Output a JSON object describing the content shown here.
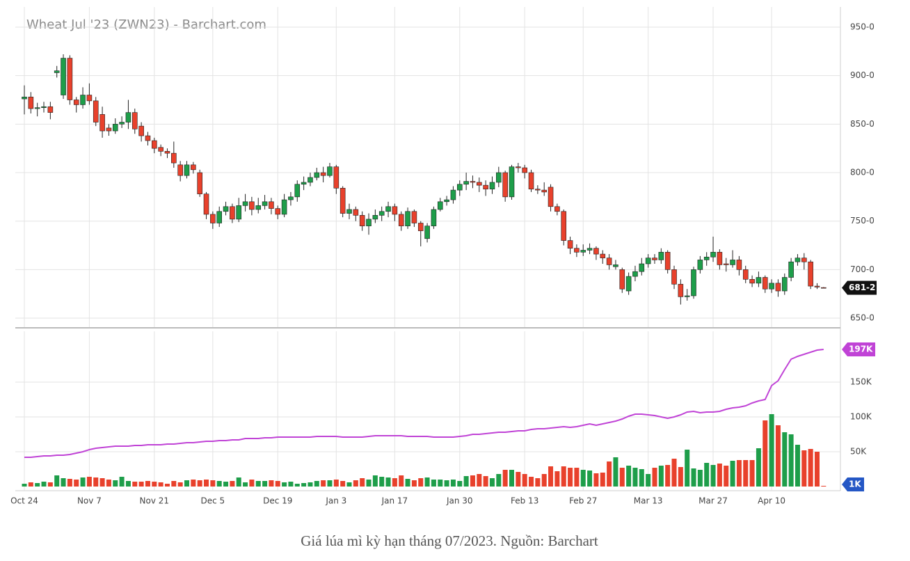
{
  "chart_data": {
    "type": "candlestick",
    "title": "Wheat Jul '23 (ZWN23) - Barchart.com",
    "caption": "Giá lúa mì kỳ hạn tháng 07/2023. Nguồn: Barchart",
    "categories": [
      "Oct 24",
      null,
      null,
      null,
      null,
      null,
      null,
      null,
      null,
      null,
      "Nov 7",
      null,
      null,
      null,
      null,
      null,
      null,
      null,
      null,
      null,
      "Nov 21",
      null,
      null,
      null,
      null,
      null,
      null,
      null,
      null,
      "Dec 5",
      null,
      null,
      null,
      null,
      null,
      null,
      null,
      null,
      null,
      "Dec 19",
      null,
      null,
      null,
      null,
      null,
      null,
      null,
      null,
      "Jan 3",
      null,
      null,
      null,
      null,
      null,
      null,
      null,
      null,
      "Jan 17",
      null,
      null,
      null,
      null,
      null,
      null,
      null,
      null,
      null,
      "Jan 30",
      null,
      null,
      null,
      null,
      null,
      null,
      null,
      null,
      null,
      "Feb 13",
      null,
      null,
      null,
      null,
      null,
      null,
      null,
      null,
      "Feb 27",
      null,
      null,
      null,
      null,
      null,
      null,
      null,
      null,
      null,
      "Mar 13",
      null,
      null,
      null,
      null,
      null,
      null,
      null,
      null,
      null,
      "Mar 27",
      null,
      null,
      null,
      null,
      null,
      null,
      null,
      null,
      "Apr 10",
      null,
      null,
      null,
      null,
      null,
      null,
      null,
      null,
      null
    ],
    "colors": {
      "up": "#1e9e4a",
      "down": "#e8412c",
      "flat": "#2457c5"
    },
    "price": {
      "open": [
        876,
        878,
        866,
        867,
        868,
        903,
        880,
        918,
        875,
        870,
        880,
        874,
        860,
        846,
        843,
        850,
        852,
        862,
        848,
        838,
        833,
        826,
        822,
        820,
        808,
        797,
        808,
        800,
        778,
        757,
        748,
        760,
        765,
        752,
        766,
        770,
        762,
        766,
        770,
        763,
        757,
        772,
        775,
        788,
        790,
        795,
        800,
        797,
        806,
        784,
        758,
        762,
        756,
        745,
        752,
        756,
        760,
        765,
        757,
        745,
        760,
        748,
        732,
        745,
        762,
        770,
        772,
        782,
        788,
        791,
        790,
        787,
        783,
        790,
        800,
        775,
        806,
        805,
        800,
        783,
        782,
        785,
        765,
        760,
        730,
        722,
        718,
        720,
        722,
        716,
        712,
        703,
        700,
        678,
        693,
        698,
        706,
        712,
        710,
        718,
        700,
        685,
        672,
        673,
        700,
        710,
        713,
        718,
        706,
        705,
        710,
        700,
        690,
        686,
        692,
        680,
        686,
        678,
        692,
        708,
        712,
        708,
        683,
        681.5
      ],
      "high": [
        890,
        883,
        872,
        873,
        873,
        910,
        922,
        921,
        878,
        888,
        892,
        878,
        868,
        850,
        856,
        858,
        875,
        866,
        852,
        842,
        836,
        829,
        825,
        832,
        812,
        812,
        811,
        803,
        780,
        760,
        765,
        770,
        768,
        774,
        778,
        775,
        774,
        777,
        774,
        766,
        778,
        780,
        792,
        796,
        800,
        805,
        806,
        810,
        808,
        786,
        768,
        765,
        760,
        758,
        762,
        765,
        770,
        768,
        760,
        764,
        762,
        750,
        748,
        765,
        774,
        776,
        786,
        792,
        800,
        797,
        795,
        792,
        796,
        806,
        802,
        808,
        810,
        808,
        803,
        787,
        790,
        788,
        768,
        762,
        734,
        726,
        726,
        727,
        724,
        720,
        716,
        710,
        702,
        697,
        704,
        712,
        716,
        716,
        722,
        720,
        704,
        690,
        680,
        703,
        714,
        718,
        734,
        721,
        712,
        720,
        714,
        704,
        694,
        698,
        694,
        690,
        690,
        696,
        712,
        716,
        717,
        710,
        686,
        682
      ],
      "low": [
        860,
        861,
        858,
        862,
        855,
        898,
        876,
        870,
        862,
        866,
        870,
        848,
        836,
        838,
        840,
        846,
        845,
        840,
        832,
        828,
        820,
        817,
        815,
        805,
        791,
        794,
        799,
        775,
        752,
        742,
        744,
        756,
        748,
        749,
        760,
        756,
        758,
        762,
        757,
        752,
        754,
        766,
        770,
        782,
        786,
        792,
        790,
        795,
        778,
        754,
        752,
        750,
        740,
        736,
        748,
        750,
        754,
        750,
        740,
        742,
        744,
        724,
        728,
        742,
        760,
        766,
        768,
        776,
        782,
        784,
        780,
        776,
        778,
        785,
        770,
        772,
        800,
        794,
        780,
        778,
        776,
        760,
        756,
        725,
        716,
        713,
        714,
        716,
        710,
        706,
        700,
        700,
        676,
        674,
        688,
        694,
        702,
        706,
        706,
        696,
        680,
        664,
        668,
        670,
        696,
        704,
        708,
        700,
        698,
        702,
        694,
        686,
        682,
        682,
        676,
        676,
        672,
        674,
        688,
        704,
        700,
        680,
        680,
        681
      ],
      "close": [
        878,
        866,
        867,
        868,
        862,
        905,
        918,
        875,
        870,
        880,
        874,
        852,
        843,
        843,
        850,
        852,
        862,
        845,
        838,
        833,
        825,
        822,
        820,
        810,
        797,
        808,
        803,
        778,
        757,
        748,
        760,
        765,
        752,
        766,
        770,
        762,
        766,
        770,
        763,
        757,
        772,
        775,
        788,
        790,
        795,
        800,
        797,
        806,
        784,
        758,
        762,
        756,
        745,
        752,
        756,
        760,
        765,
        757,
        745,
        760,
        748,
        740,
        745,
        762,
        770,
        772,
        782,
        788,
        791,
        790,
        787,
        783,
        790,
        800,
        775,
        806,
        805,
        800,
        783,
        782,
        780,
        765,
        760,
        730,
        722,
        718,
        720,
        722,
        716,
        712,
        705,
        705,
        680,
        693,
        698,
        706,
        712,
        710,
        718,
        700,
        685,
        672,
        673,
        700,
        710,
        713,
        718,
        705,
        705,
        710,
        700,
        690,
        686,
        692,
        680,
        686,
        678,
        692,
        708,
        712,
        708,
        683,
        682,
        681.25
      ],
      "last_label": "681-2",
      "ylim": [
        640.7,
        970.8
      ],
      "yticks": [
        {
          "value": 650,
          "label": "650-0"
        },
        {
          "value": 700,
          "label": "700-0"
        },
        {
          "value": 750,
          "label": "750-0"
        },
        {
          "value": 800,
          "label": "800-0"
        },
        {
          "value": 850,
          "label": "850-0"
        },
        {
          "value": 900,
          "label": "900-0"
        },
        {
          "value": 950,
          "label": "950-0"
        }
      ]
    },
    "volume": {
      "values": [
        4000,
        6000,
        5000,
        7000,
        6000,
        16000,
        12000,
        11000,
        10000,
        13000,
        14000,
        13000,
        12000,
        10000,
        9000,
        14000,
        8000,
        7000,
        7000,
        8000,
        7000,
        6000,
        4000,
        8000,
        6000,
        9000,
        10000,
        9000,
        10000,
        9000,
        8000,
        7000,
        8000,
        13000,
        6000,
        10000,
        8000,
        8000,
        9000,
        8000,
        6000,
        7000,
        4000,
        5000,
        6000,
        8000,
        9000,
        9000,
        10000,
        8000,
        6000,
        9000,
        12000,
        10000,
        16000,
        14000,
        13000,
        12000,
        16000,
        11000,
        9000,
        12000,
        13000,
        10000,
        10000,
        9000,
        10000,
        8000,
        15000,
        16000,
        18000,
        15000,
        12000,
        18000,
        24000,
        24000,
        21000,
        18000,
        14000,
        12000,
        18000,
        29000,
        22000,
        29000,
        27000,
        27000,
        24000,
        23000,
        19000,
        20000,
        36000,
        42000,
        27000,
        30000,
        27000,
        25000,
        18000,
        27000,
        30000,
        31000,
        40000,
        28000,
        53000,
        26000,
        24000,
        34000,
        31000,
        33000,
        30000,
        37000,
        38000,
        38000,
        38000,
        55000,
        95000,
        104000,
        88000,
        78000,
        75000,
        60000,
        52000,
        54000,
        50000,
        1000
      ],
      "last_label": "1K"
    },
    "open_interest": {
      "color": "#c043d6",
      "values": [
        42000,
        42000,
        43000,
        44000,
        44000,
        45000,
        45000,
        46000,
        48000,
        50000,
        53000,
        55000,
        56000,
        57000,
        58000,
        58000,
        58000,
        59000,
        59000,
        60000,
        60000,
        60000,
        61000,
        61000,
        62000,
        63000,
        63000,
        64000,
        65000,
        65000,
        66000,
        66000,
        67000,
        67000,
        69000,
        69000,
        69000,
        70000,
        70000,
        71000,
        71000,
        71000,
        71000,
        71000,
        71000,
        72000,
        72000,
        72000,
        72000,
        71000,
        71000,
        71000,
        71000,
        72000,
        73000,
        73000,
        73000,
        73000,
        73000,
        72000,
        72000,
        72000,
        72000,
        71000,
        71000,
        71000,
        71000,
        72000,
        73000,
        75000,
        75000,
        76000,
        77000,
        78000,
        78000,
        79000,
        80000,
        80000,
        82000,
        83000,
        83000,
        84000,
        85000,
        86000,
        85000,
        86000,
        88000,
        90000,
        88000,
        90000,
        92000,
        94000,
        97000,
        101000,
        104000,
        104000,
        103000,
        102000,
        100000,
        98000,
        100000,
        103000,
        107000,
        108000,
        106000,
        107000,
        107000,
        108000,
        111000,
        113000,
        114000,
        116000,
        120000,
        123000,
        125000,
        145000,
        152000,
        168000,
        183000,
        187000,
        190000,
        193000,
        196000,
        197000
      ],
      "last_label": "197K"
    },
    "volume_ylim": [
      -6000,
      223000
    ],
    "volume_yticks": [
      {
        "value": 50000,
        "label": "50K"
      },
      {
        "value": 100000,
        "label": "100K"
      },
      {
        "value": 150000,
        "label": "150K"
      }
    ],
    "grid": true
  }
}
